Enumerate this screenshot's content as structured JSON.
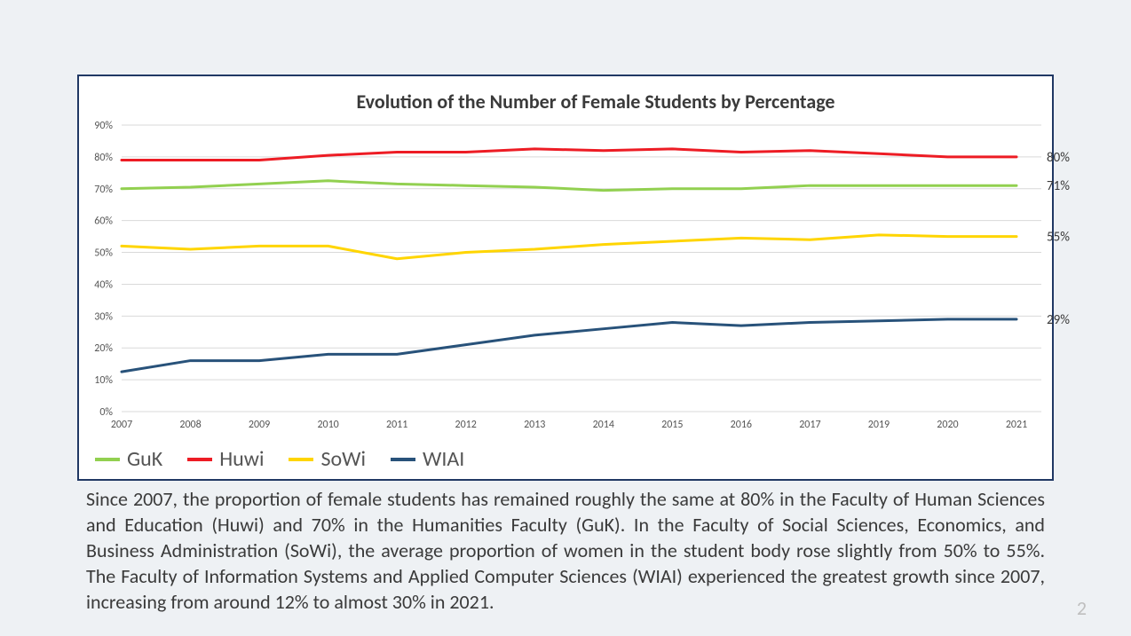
{
  "chart": {
    "type": "line",
    "title": "Evolution of the Number of Female Students by Percentage",
    "title_fontsize": 22,
    "title_color": "#3a3a3a",
    "background_color": "#ffffff",
    "border_color": "#203864",
    "grid_color": "#d9d9d9",
    "axis_label_color": "#555555",
    "axis_label_fontsize": 12,
    "x_categories": [
      "2007",
      "2008",
      "2009",
      "2010",
      "2011",
      "2012",
      "2013",
      "2014",
      "2015",
      "2016",
      "2017",
      "2019",
      "2020",
      "2021"
    ],
    "ylim": [
      0,
      90
    ],
    "ytick_step": 10,
    "ytick_suffix": "%",
    "line_width": 3,
    "series": [
      {
        "name": "GuK",
        "color": "#92d050",
        "end_label": "71%",
        "values": [
          70,
          70.5,
          71.5,
          72.5,
          71.5,
          71,
          70.5,
          69.5,
          70,
          70,
          71,
          71,
          71,
          71
        ]
      },
      {
        "name": "Huwi",
        "color": "#ed1c24",
        "end_label": "80%",
        "values": [
          79,
          79,
          79,
          80.5,
          81.5,
          81.5,
          82.5,
          82,
          82.5,
          81.5,
          82,
          81,
          80,
          80
        ]
      },
      {
        "name": "SoWi",
        "color": "#ffd500",
        "end_label": "55%",
        "values": [
          52,
          51,
          52,
          52,
          48,
          50,
          51,
          52.5,
          53.5,
          54.5,
          54,
          55.5,
          55,
          55
        ]
      },
      {
        "name": "WIAI",
        "color": "#28527a",
        "end_label": "29%",
        "values": [
          12.5,
          16,
          16,
          18,
          18,
          21,
          24,
          26,
          28,
          27,
          28,
          28.5,
          29,
          29
        ]
      }
    ],
    "legend_position": "bottom-left",
    "legend_fontsize": 24
  },
  "body_text": "Since 2007, the proportion of female students has remained roughly the same at 80% in the Faculty of Human Sciences and Education (Huwi) and 70% in the Humanities Faculty (GuK). In the Faculty of Social Sciences, Economics, and Business Administration (SoWi), the average proportion of women in the student body rose slightly from 50% to 55%. The Faculty of Information Systems and Applied Computer Sciences (WIAI) experienced the greatest growth since 2007, increasing from around 12% to almost 30% in 2021.",
  "page_number": "2",
  "page_background": "#eef1f4"
}
